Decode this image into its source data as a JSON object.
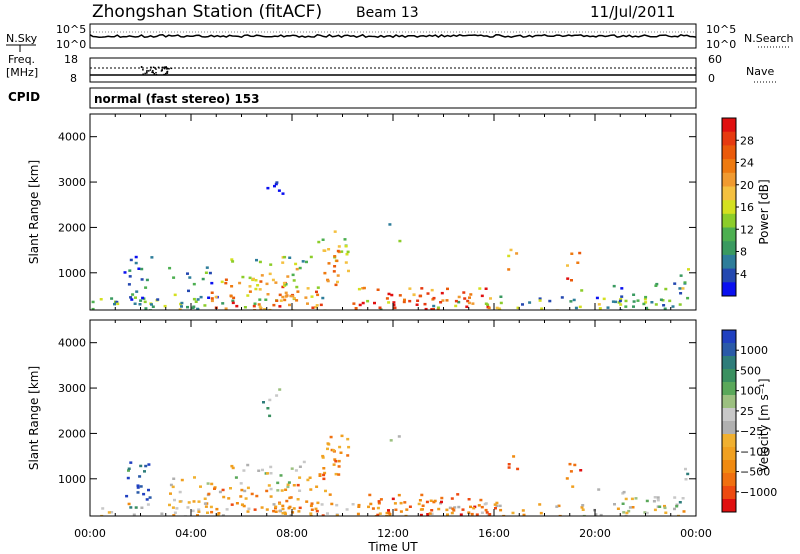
{
  "header": {
    "station": "Zhongshan Station (fitACF)",
    "beam": "Beam 13",
    "date": "11/Jul/2011"
  },
  "strips": {
    "nsky_label": "N.Sky",
    "nsky_ticks": [
      "10^5",
      "10^0"
    ],
    "nsearch_label": "N.Search",
    "nsearch_ticks": [
      "10^5",
      "10^0"
    ],
    "freq_label_1": "Freq.",
    "freq_label_2": "[MHz]",
    "freq_ticks": [
      "18",
      "8"
    ],
    "nave_label": "Nave",
    "nave_ticks": [
      "60",
      "0"
    ],
    "cpid_label": "CPID",
    "cpid_text": "normal (fast stereo) 153"
  },
  "chart_data": [
    {
      "type": "heatmap",
      "name": "power",
      "ylabel": "Slant Range [km]",
      "xlabel": "Time UT",
      "yticks": [
        "1000",
        "2000",
        "3000",
        "4000"
      ],
      "xticks": [
        "00:00",
        "04:00",
        "08:00",
        "12:00",
        "16:00",
        "20:00",
        "00:00"
      ],
      "ylim": [
        180,
        4500
      ],
      "xlim_hours": [
        0,
        24
      ],
      "colorbar": {
        "label": "Power [dB]",
        "ticks": [
          "4",
          "8",
          "12",
          "16",
          "20",
          "24",
          "28"
        ],
        "colors": [
          "#0a10f0",
          "#2448b0",
          "#2e7d9a",
          "#3a9a60",
          "#4caf50",
          "#8ccd2a",
          "#d4e020",
          "#f4c040",
          "#f09a30",
          "#ee7a10",
          "#ea5a0a",
          "#e63a10",
          "#e01010"
        ]
      }
    },
    {
      "type": "heatmap",
      "name": "velocity",
      "ylabel": "Slant Range [km]",
      "xlabel": "Time UT",
      "yticks": [
        "1000",
        "2000",
        "3000",
        "4000"
      ],
      "xticks": [
        "00:00",
        "04:00",
        "08:00",
        "12:00",
        "16:00",
        "20:00",
        "00:00"
      ],
      "ylim": [
        180,
        4500
      ],
      "xlim_hours": [
        0,
        24
      ],
      "colorbar": {
        "label": "Velocity [m s⁻¹]",
        "ticks": [
          "1000",
          "500",
          "100",
          "25",
          "−25",
          "−100",
          "−500",
          "−1000"
        ],
        "colors": [
          "#2040c0",
          "#2a5aa8",
          "#2e7d7a",
          "#3a9060",
          "#5aa85a",
          "#9cc080",
          "#c8c8c8",
          "#b0b0b0",
          "#f0b030",
          "#f0a020",
          "#f08a10",
          "#f07010",
          "#ee4a10",
          "#e01010"
        ]
      }
    }
  ]
}
